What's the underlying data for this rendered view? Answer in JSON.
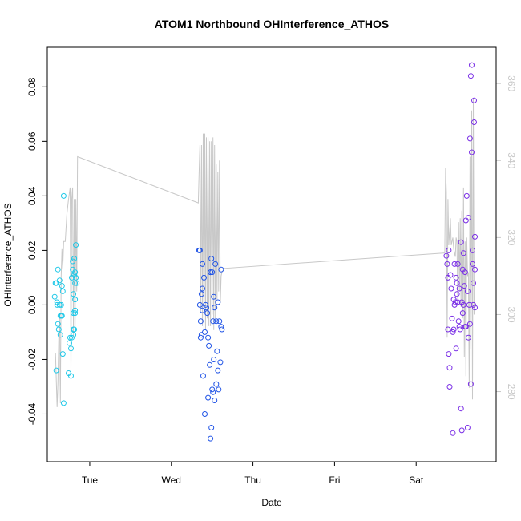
{
  "chart_data": {
    "type": "scatter",
    "title": "ATOM1 Northbound OHInterference_ATHOS",
    "xlabel": "Date",
    "ylabel": "OHInterference_ATHOS",
    "x_ticks": [
      "Tue",
      "Wed",
      "Thu",
      "Fri",
      "Sat"
    ],
    "x_tick_values": [
      1,
      2,
      3,
      4,
      5
    ],
    "xlim": [
      0.48,
      5.98
    ],
    "ylim": [
      -0.0575,
      0.0945
    ],
    "y_ticks": [
      -0.04,
      -0.02,
      0.0,
      0.02,
      0.04,
      0.06,
      0.08
    ],
    "y_tick_labels": [
      "-0.04",
      "-0.02",
      "0.00",
      "0.02",
      "0.04",
      "0.06",
      "0.08"
    ],
    "y2lim": [
      261.8,
      369.4
    ],
    "y2_ticks": [
      280,
      300,
      320,
      340,
      360
    ],
    "y2_tick_labels": [
      "280",
      "300",
      "320",
      "340",
      "360"
    ],
    "colors": {
      "series1": "#1ec8e8",
      "series2": "#2255e6",
      "series3": "#7a2ee6",
      "line": "#c8c8c8",
      "right_axis": "#c8c8c8"
    },
    "series": [
      {
        "name": "group1",
        "color": "#1ec8e8",
        "points": [
          [
            0.57,
            0.003
          ],
          [
            0.58,
            0.008
          ],
          [
            0.59,
            0.008
          ],
          [
            0.59,
            -0.024
          ],
          [
            0.6,
            0.001
          ],
          [
            0.6,
            0.0
          ],
          [
            0.61,
            0.013
          ],
          [
            0.61,
            -0.007
          ],
          [
            0.62,
            -0.009
          ],
          [
            0.63,
            0.009
          ],
          [
            0.63,
            0.0
          ],
          [
            0.64,
            -0.011
          ],
          [
            0.64,
            -0.004
          ],
          [
            0.65,
            0.0
          ],
          [
            0.65,
            -0.004
          ],
          [
            0.66,
            0.007
          ],
          [
            0.66,
            -0.004
          ],
          [
            0.67,
            0.005
          ],
          [
            0.67,
            -0.018
          ],
          [
            0.68,
            0.04
          ],
          [
            0.68,
            -0.036
          ],
          [
            0.74,
            -0.025
          ],
          [
            0.75,
            -0.014
          ],
          [
            0.76,
            -0.012
          ],
          [
            0.77,
            -0.016
          ],
          [
            0.77,
            -0.026
          ],
          [
            0.78,
            -0.012
          ],
          [
            0.78,
            0.01
          ],
          [
            0.79,
            0.016
          ],
          [
            0.79,
            0.013
          ],
          [
            0.8,
            0.004
          ],
          [
            0.8,
            -0.009
          ],
          [
            0.8,
            -0.011
          ],
          [
            0.81,
            0.017
          ],
          [
            0.81,
            0.011
          ],
          [
            0.82,
            0.012
          ],
          [
            0.82,
            0.008
          ],
          [
            0.82,
            0.002
          ],
          [
            0.83,
            0.022
          ],
          [
            0.83,
            0.01
          ],
          [
            0.84,
            0.008
          ],
          [
            0.82,
            -0.003
          ],
          [
            0.82,
            -0.002
          ],
          [
            0.81,
            -0.009
          ],
          [
            0.8,
            -0.003
          ]
        ]
      },
      {
        "name": "group2",
        "color": "#2255e6",
        "points": [
          [
            2.34,
            0.02
          ],
          [
            2.35,
            0.02
          ],
          [
            2.35,
            0.0
          ],
          [
            2.36,
            -0.006
          ],
          [
            2.36,
            -0.012
          ],
          [
            2.37,
            0.004
          ],
          [
            2.37,
            -0.011
          ],
          [
            2.38,
            0.006
          ],
          [
            2.38,
            0.015
          ],
          [
            2.38,
            -0.002
          ],
          [
            2.39,
            -0.026
          ],
          [
            2.4,
            0.01
          ],
          [
            2.41,
            -0.01
          ],
          [
            2.41,
            -0.04
          ],
          [
            2.42,
            0.0
          ],
          [
            2.43,
            -0.001
          ],
          [
            2.44,
            -0.003
          ],
          [
            2.45,
            -0.034
          ],
          [
            2.45,
            -0.012
          ],
          [
            2.46,
            -0.015
          ],
          [
            2.47,
            -0.022
          ],
          [
            2.48,
            -0.049
          ],
          [
            2.48,
            0.012
          ],
          [
            2.49,
            -0.045
          ],
          [
            2.49,
            0.017
          ],
          [
            2.5,
            -0.031
          ],
          [
            2.5,
            0.012
          ],
          [
            2.51,
            -0.006
          ],
          [
            2.51,
            -0.032
          ],
          [
            2.52,
            -0.02
          ],
          [
            2.52,
            0.003
          ],
          [
            2.53,
            -0.001
          ],
          [
            2.53,
            -0.035
          ],
          [
            2.54,
            0.015
          ],
          [
            2.55,
            -0.029
          ],
          [
            2.55,
            -0.006
          ],
          [
            2.56,
            -0.017
          ],
          [
            2.57,
            0.001
          ],
          [
            2.57,
            -0.024
          ],
          [
            2.58,
            -0.031
          ],
          [
            2.59,
            -0.006
          ],
          [
            2.6,
            -0.021
          ],
          [
            2.61,
            -0.008
          ],
          [
            2.61,
            0.013
          ],
          [
            2.62,
            -0.009
          ],
          [
            2.48,
            0.012
          ]
        ]
      },
      {
        "name": "group3",
        "color": "#7a2ee6",
        "points": [
          [
            5.37,
            0.018
          ],
          [
            5.38,
            0.015
          ],
          [
            5.39,
            -0.009
          ],
          [
            5.39,
            0.01
          ],
          [
            5.4,
            -0.018
          ],
          [
            5.4,
            0.02
          ],
          [
            5.41,
            -0.023
          ],
          [
            5.41,
            -0.03
          ],
          [
            5.42,
            0.011
          ],
          [
            5.43,
            0.006
          ],
          [
            5.44,
            -0.005
          ],
          [
            5.45,
            -0.01
          ],
          [
            5.45,
            -0.047
          ],
          [
            5.46,
            0.002
          ],
          [
            5.46,
            -0.009
          ],
          [
            5.47,
            0.0
          ],
          [
            5.47,
            0.015
          ],
          [
            5.48,
            0.001
          ],
          [
            5.49,
            0.01
          ],
          [
            5.49,
            -0.016
          ],
          [
            5.5,
            0.008
          ],
          [
            5.5,
            0.004
          ],
          [
            5.51,
            0.001
          ],
          [
            5.51,
            0.015
          ],
          [
            5.52,
            -0.006
          ],
          [
            5.53,
            -0.008
          ],
          [
            5.53,
            0.006
          ],
          [
            5.54,
            -0.009
          ],
          [
            5.55,
            -0.038
          ],
          [
            5.55,
            0.023
          ],
          [
            5.56,
            -0.046
          ],
          [
            5.56,
            0.001
          ],
          [
            5.57,
            0.013
          ],
          [
            5.57,
            -0.003
          ],
          [
            5.58,
            0.019
          ],
          [
            5.58,
            0.0
          ],
          [
            5.59,
            0.007
          ],
          [
            5.6,
            -0.008
          ],
          [
            5.6,
            0.012
          ],
          [
            5.61,
            -0.008
          ],
          [
            5.61,
            0.031
          ],
          [
            5.62,
            0.04
          ],
          [
            5.63,
            0.005
          ],
          [
            5.63,
            -0.045
          ],
          [
            5.64,
            0.032
          ],
          [
            5.64,
            -0.012
          ],
          [
            5.65,
            0.0
          ],
          [
            5.66,
            0.061
          ],
          [
            5.66,
            -0.007
          ],
          [
            5.67,
            0.084
          ],
          [
            5.67,
            -0.029
          ],
          [
            5.68,
            0.088
          ],
          [
            5.68,
            0.056
          ],
          [
            5.69,
            0.02
          ],
          [
            5.69,
            0.015
          ],
          [
            5.7,
            0.008
          ],
          [
            5.7,
            0.0
          ],
          [
            5.71,
            0.075
          ],
          [
            5.71,
            0.067
          ],
          [
            5.72,
            0.013
          ],
          [
            5.72,
            -0.001
          ],
          [
            5.72,
            0.025
          ]
        ]
      }
    ],
    "line_series": {
      "name": "secondary",
      "color": "#c8c8c8",
      "axis": "right",
      "segments": [
        [
          [
            0.58,
            290
          ],
          [
            0.6,
            276
          ],
          [
            0.61,
            282
          ],
          [
            0.62,
            294
          ],
          [
            0.63,
            300
          ],
          [
            0.64,
            277
          ],
          [
            0.65,
            310
          ],
          [
            0.66,
            317
          ],
          [
            0.67,
            312
          ],
          [
            0.68,
            319
          ],
          [
            0.7,
            319
          ],
          [
            0.72,
            326
          ],
          [
            0.74,
            330
          ],
          [
            0.76,
            333
          ],
          [
            0.77,
            286
          ],
          [
            0.78,
            330
          ],
          [
            0.79,
            333
          ],
          [
            0.8,
            294
          ],
          [
            0.81,
            330
          ],
          [
            0.82,
            296
          ],
          [
            0.83,
            330
          ],
          [
            0.84,
            306
          ],
          [
            0.85,
            341
          ],
          [
            2.33,
            329
          ],
          [
            2.34,
            337
          ],
          [
            2.35,
            344
          ],
          [
            2.36,
            301
          ],
          [
            2.37,
            344
          ],
          [
            2.38,
            297
          ],
          [
            2.39,
            347
          ],
          [
            2.4,
            294
          ],
          [
            2.41,
            347
          ],
          [
            2.42,
            296
          ],
          [
            2.43,
            346
          ],
          [
            2.44,
            299
          ],
          [
            2.45,
            346
          ],
          [
            2.46,
            297
          ],
          [
            2.47,
            345
          ],
          [
            2.48,
            297
          ],
          [
            2.49,
            345
          ],
          [
            2.5,
            300
          ],
          [
            2.51,
            346
          ],
          [
            2.52,
            296
          ],
          [
            2.53,
            344
          ],
          [
            2.54,
            299
          ],
          [
            2.55,
            339
          ],
          [
            2.56,
            304
          ],
          [
            2.57,
            337
          ],
          [
            2.58,
            306
          ],
          [
            2.59,
            340
          ],
          [
            2.6,
            303
          ],
          [
            2.61,
            310
          ],
          [
            2.62,
            311
          ],
          [
            2.65,
            312
          ],
          [
            5.35,
            316
          ]
        ],
        [
          [
            5.35,
            316
          ],
          [
            5.36,
            338
          ],
          [
            5.37,
            332
          ],
          [
            5.38,
            294
          ],
          [
            5.39,
            330
          ],
          [
            5.4,
            318
          ],
          [
            5.42,
            325
          ],
          [
            5.43,
            318
          ],
          [
            5.45,
            320
          ],
          [
            5.46,
            317
          ],
          [
            5.47,
            316
          ],
          [
            5.48,
            315
          ],
          [
            5.49,
            320
          ],
          [
            5.5,
            319
          ],
          [
            5.51,
            304
          ],
          [
            5.52,
            324
          ],
          [
            5.53,
            306
          ],
          [
            5.54,
            325
          ],
          [
            5.55,
            302
          ],
          [
            5.56,
            327
          ],
          [
            5.57,
            299
          ],
          [
            5.58,
            333
          ],
          [
            5.59,
            289
          ],
          [
            5.6,
            319
          ],
          [
            5.61,
            284
          ],
          [
            5.62,
            320
          ],
          [
            5.63,
            310
          ],
          [
            5.64,
            311
          ],
          [
            5.65,
            281
          ],
          [
            5.66,
            341
          ],
          [
            5.67,
            291
          ],
          [
            5.68,
            353
          ],
          [
            5.69,
            278
          ],
          [
            5.7,
            356
          ],
          [
            5.71,
            300
          ]
        ]
      ]
    }
  }
}
